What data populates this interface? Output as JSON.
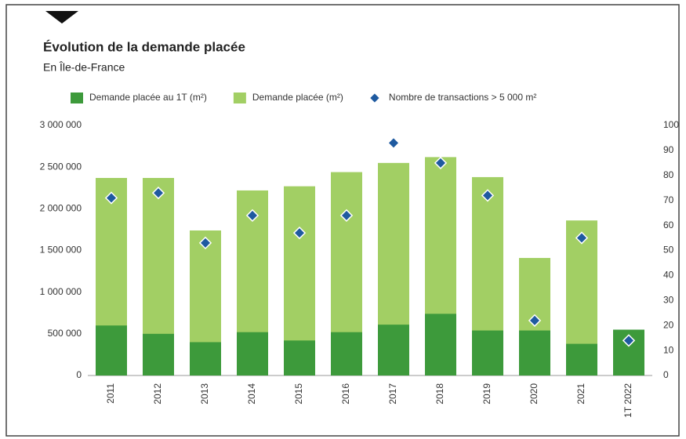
{
  "chart_data": {
    "type": "bar",
    "title": "Évolution de la demande placée",
    "subtitle": "En Île-de-France",
    "categories": [
      "2011",
      "2012",
      "2013",
      "2014",
      "2015",
      "2016",
      "2017",
      "2018",
      "2019",
      "2020",
      "2021",
      "1T 2022"
    ],
    "series": [
      {
        "name": "Demande placée au 1T (m²)",
        "color": "#3d9a3b",
        "type": "bar",
        "values": [
          600000,
          500000,
          400000,
          520000,
          420000,
          520000,
          610000,
          740000,
          540000,
          540000,
          380000,
          550000
        ]
      },
      {
        "name": "Demande placée (m²)",
        "color": "#a2cf64",
        "type": "bar",
        "values": [
          2370000,
          2370000,
          1740000,
          2220000,
          2270000,
          2440000,
          2550000,
          2620000,
          2380000,
          1410000,
          1860000,
          null
        ]
      },
      {
        "name": "Nombre de transactions > 5 000 m²",
        "color": "#1f5aa0",
        "type": "scatter",
        "axis": "y2",
        "values": [
          71,
          73,
          53,
          64,
          57,
          64,
          93,
          85,
          72,
          22,
          55,
          14
        ]
      }
    ],
    "ylim": [
      0,
      3000000
    ],
    "yticks": [
      0,
      {
        "value": 500000,
        "label": "500 000"
      },
      {
        "value": 1000000,
        "label": "1 000 000"
      },
      {
        "value": 1500000,
        "label": "1 500 000"
      },
      {
        "value": 2000000,
        "label": "2 000 000"
      },
      {
        "value": 2500000,
        "label": "2 500 000"
      },
      {
        "value": 3000000,
        "label": "3 000 000"
      }
    ],
    "y2lim": [
      0,
      100
    ],
    "y2ticks": [
      0,
      10,
      20,
      30,
      40,
      50,
      60,
      70,
      80,
      90,
      100
    ]
  }
}
